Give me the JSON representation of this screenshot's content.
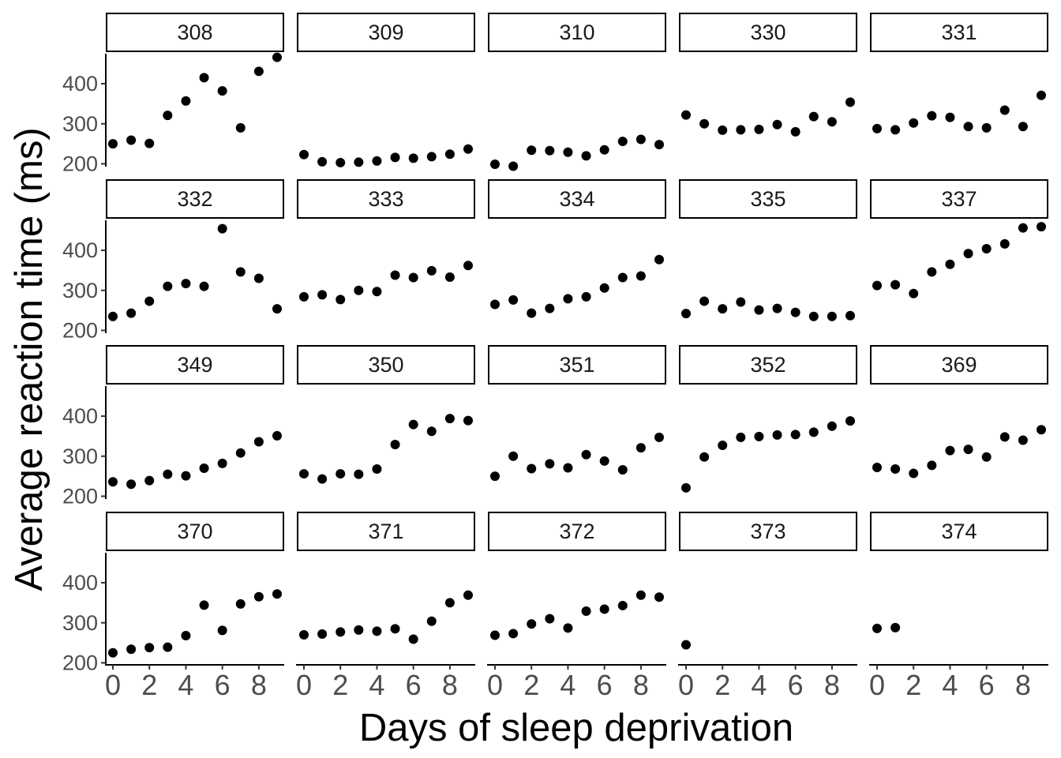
{
  "chart_data": {
    "type": "scatter",
    "faceted": true,
    "facet_layout": {
      "nrow": 4,
      "ncol": 5
    },
    "xlabel": "Days of sleep deprivation",
    "ylabel": "Average reaction time (ms)",
    "xlim": [
      0,
      9
    ],
    "ylim": [
      195,
      475
    ],
    "x_ticks": [
      0,
      2,
      4,
      6,
      8
    ],
    "y_ticks": [
      200,
      300,
      400
    ],
    "grid": false,
    "point_color": "#000000",
    "panels": [
      {
        "label": "308",
        "x": [
          0,
          1,
          2,
          3,
          4,
          5,
          6,
          7,
          8,
          9
        ],
        "y": [
          250,
          259,
          251,
          321,
          357,
          415,
          382,
          290,
          431,
          466
        ]
      },
      {
        "label": "309",
        "x": [
          0,
          1,
          2,
          3,
          4,
          5,
          6,
          7,
          8,
          9
        ],
        "y": [
          223,
          205,
          203,
          204,
          207,
          216,
          214,
          218,
          224,
          237
        ]
      },
      {
        "label": "310",
        "x": [
          0,
          1,
          2,
          3,
          4,
          5,
          6,
          7,
          8,
          9
        ],
        "y": [
          199,
          194,
          234,
          233,
          229,
          220,
          235,
          256,
          261,
          248
        ]
      },
      {
        "label": "330",
        "x": [
          0,
          1,
          2,
          3,
          4,
          5,
          6,
          7,
          8,
          9
        ],
        "y": [
          322,
          300,
          284,
          285,
          286,
          298,
          280,
          318,
          305,
          354
        ]
      },
      {
        "label": "331",
        "x": [
          0,
          1,
          2,
          3,
          4,
          5,
          6,
          7,
          8,
          9
        ],
        "y": [
          288,
          285,
          302,
          320,
          316,
          293,
          290,
          334,
          293,
          371
        ]
      },
      {
        "label": "332",
        "x": [
          0,
          1,
          2,
          3,
          4,
          5,
          6,
          7,
          8,
          9
        ],
        "y": [
          235,
          243,
          273,
          310,
          317,
          310,
          454,
          346,
          330,
          254
        ]
      },
      {
        "label": "333",
        "x": [
          0,
          1,
          2,
          3,
          4,
          5,
          6,
          7,
          8,
          9
        ],
        "y": [
          284,
          289,
          277,
          300,
          297,
          338,
          332,
          349,
          333,
          362
        ]
      },
      {
        "label": "334",
        "x": [
          0,
          1,
          2,
          3,
          4,
          5,
          6,
          7,
          8,
          9
        ],
        "y": [
          265,
          276,
          243,
          255,
          279,
          284,
          306,
          332,
          336,
          377
        ]
      },
      {
        "label": "335",
        "x": [
          0,
          1,
          2,
          3,
          4,
          5,
          6,
          7,
          8,
          9
        ],
        "y": [
          242,
          273,
          254,
          271,
          251,
          255,
          245,
          235,
          235,
          237
        ]
      },
      {
        "label": "337",
        "x": [
          0,
          1,
          2,
          3,
          4,
          5,
          6,
          7,
          8,
          9
        ],
        "y": [
          312,
          314,
          292,
          346,
          365,
          392,
          404,
          416,
          456,
          459
        ]
      },
      {
        "label": "349",
        "x": [
          0,
          1,
          2,
          3,
          4,
          5,
          6,
          7,
          8,
          9
        ],
        "y": [
          236,
          230,
          239,
          255,
          251,
          270,
          282,
          308,
          336,
          351
        ]
      },
      {
        "label": "350",
        "x": [
          0,
          1,
          2,
          3,
          4,
          5,
          6,
          7,
          8,
          9
        ],
        "y": [
          256,
          243,
          256,
          255,
          268,
          329,
          379,
          362,
          394,
          389
        ]
      },
      {
        "label": "351",
        "x": [
          0,
          1,
          2,
          3,
          4,
          5,
          6,
          7,
          8,
          9
        ],
        "y": [
          250,
          300,
          269,
          281,
          271,
          304,
          288,
          266,
          321,
          347
        ]
      },
      {
        "label": "352",
        "x": [
          0,
          1,
          2,
          3,
          4,
          5,
          6,
          7,
          8,
          9
        ],
        "y": [
          221,
          298,
          327,
          347,
          349,
          353,
          354,
          360,
          375,
          388
        ]
      },
      {
        "label": "369",
        "x": [
          0,
          1,
          2,
          3,
          4,
          5,
          6,
          7,
          8,
          9
        ],
        "y": [
          272,
          268,
          257,
          277,
          314,
          317,
          298,
          348,
          340,
          366
        ]
      },
      {
        "label": "370",
        "x": [
          0,
          1,
          2,
          3,
          4,
          5,
          6,
          7,
          8,
          9
        ],
        "y": [
          225,
          234,
          238,
          239,
          268,
          344,
          281,
          347,
          365,
          372
        ]
      },
      {
        "label": "371",
        "x": [
          0,
          1,
          2,
          3,
          4,
          5,
          6,
          7,
          8,
          9
        ],
        "y": [
          270,
          272,
          277,
          282,
          279,
          285,
          259,
          304,
          350,
          369
        ]
      },
      {
        "label": "372",
        "x": [
          0,
          1,
          2,
          3,
          4,
          5,
          6,
          7,
          8,
          9
        ],
        "y": [
          269,
          273,
          297,
          310,
          287,
          329,
          334,
          343,
          369,
          364
        ]
      },
      {
        "label": "373",
        "x": [
          0
        ],
        "y": [
          245
        ]
      },
      {
        "label": "374",
        "x": [
          0,
          1
        ],
        "y": [
          286,
          288
        ]
      }
    ]
  }
}
